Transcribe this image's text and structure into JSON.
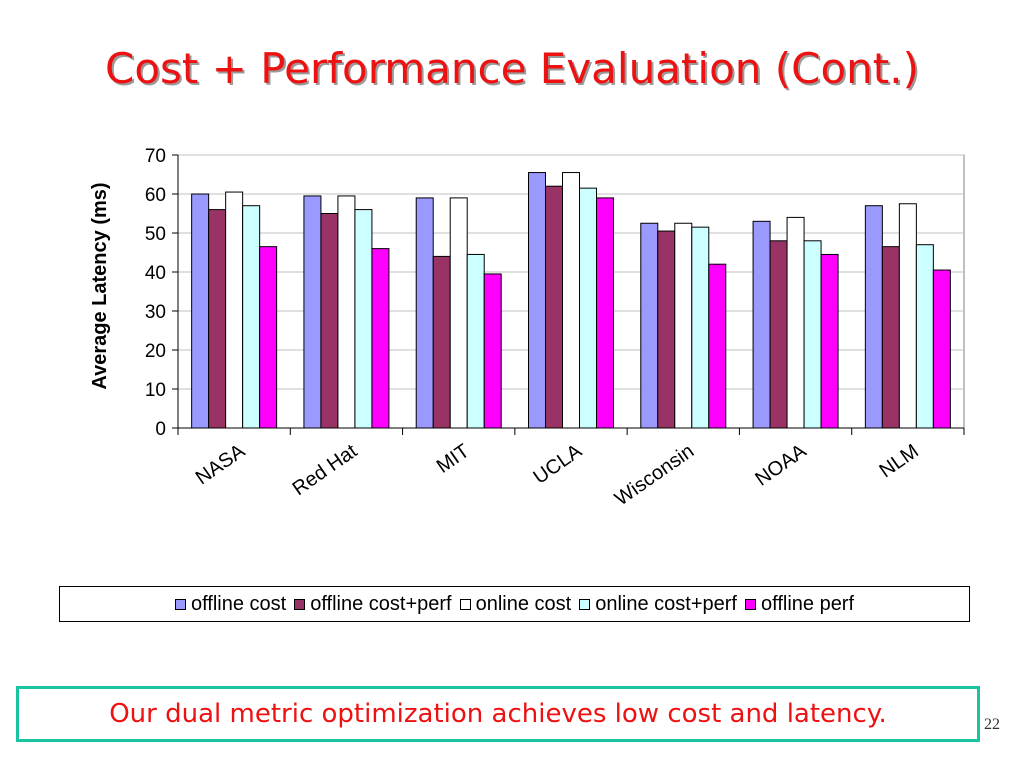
{
  "slide": {
    "title": "Cost + Performance Evaluation (Cont.)",
    "callout": "Our dual metric optimization achieves low cost and latency.",
    "page_number": "22"
  },
  "chart_data": {
    "type": "bar",
    "title": "",
    "xlabel": "",
    "ylabel": "Average Latency (ms)",
    "ylim": [
      0,
      70
    ],
    "yticks": [
      0,
      10,
      20,
      30,
      40,
      50,
      60,
      70
    ],
    "grid": true,
    "legend_position": "bottom",
    "categories": [
      "NASA",
      "Red Hat",
      "MIT",
      "UCLA",
      "Wisconsin",
      "NOAA",
      "NLM"
    ],
    "series": [
      {
        "name": "offline cost",
        "color": "#9999ff",
        "values": [
          60,
          59.5,
          59,
          65.5,
          52.5,
          53,
          57
        ]
      },
      {
        "name": "offline cost+perf",
        "color": "#993366",
        "values": [
          56,
          55,
          44,
          62,
          50.5,
          48,
          46.5
        ]
      },
      {
        "name": "online cost",
        "color": "#ffffff",
        "values": [
          60.5,
          59.5,
          59,
          65.5,
          52.5,
          54,
          57.5
        ]
      },
      {
        "name": "online cost+perf",
        "color": "#ccffff",
        "values": [
          57,
          56,
          44.5,
          61.5,
          51.5,
          48,
          47
        ]
      },
      {
        "name": "offline perf",
        "color": "#ff00ff",
        "values": [
          46.5,
          46,
          39.5,
          59,
          42,
          44.5,
          40.5
        ]
      }
    ]
  }
}
